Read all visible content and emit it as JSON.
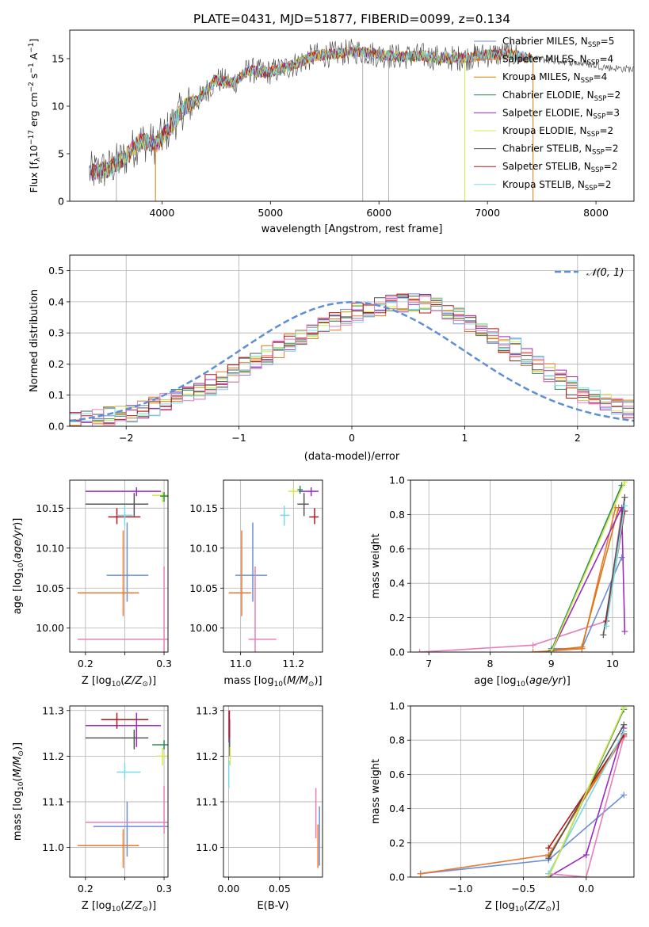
{
  "figure_title": "PLATE=0431, MJD=51877, FIBERID=0099, z=0.134",
  "colors": {
    "Chabrier MILES": "#6a8fd8",
    "Salpeter MILES": "#ee7733",
    "Kroupa MILES": "#d47a12",
    "Chabrier ELODIE": "#2e8b57",
    "Salpeter ELODIE": "#9a2ac2",
    "Kroupa ELODIE": "#d6e84a",
    "Chabrier STELIB": "#555555",
    "Salpeter STELIB": "#b01818",
    "Kroupa STELIB": "#76d9e6",
    "Pink": "#e67fb9",
    "normal": "#5f8ed8"
  },
  "chart_data": [
    {
      "id": "spectrum",
      "type": "line",
      "xlabel": "wavelength [Angstrom, rest frame]",
      "ylabel": "Flux [f_λ10^-17 erg cm^-2 s^-1 A^-1]",
      "ylabel_parts": {
        "main": "Flux [f",
        "sub1": "λ",
        "mid": "10",
        "sup1": "−17",
        "mid2": " erg cm",
        "sup2": "−2",
        "mid3": " s",
        "sup3": "−1",
        "mid4": " A",
        "sup4": "−1",
        "end": "]"
      },
      "xlim": [
        3150,
        8350
      ],
      "ylim": [
        0,
        18
      ],
      "xticks": [
        4000,
        5000,
        6000,
        7000,
        8000
      ],
      "yticks": [
        0,
        5,
        10,
        15
      ],
      "grid": false,
      "legend": [
        {
          "text": "Chabrier MILES, N",
          "sub": "SSP",
          "val": "=5",
          "color": "#6a8fd8"
        },
        {
          "text": "Salpeter MILES, N",
          "sub": "SSP",
          "val": "=4",
          "color": "#ee7733"
        },
        {
          "text": "Kroupa MILES, N",
          "sub": "SSP",
          "val": "=4",
          "color": "#d47a12"
        },
        {
          "text": "Chabrier ELODIE, N",
          "sub": "SSP",
          "val": "=2",
          "color": "#2e8b57"
        },
        {
          "text": "Salpeter ELODIE, N",
          "sub": "SSP",
          "val": "=3",
          "color": "#9a2ac2"
        },
        {
          "text": "Kroupa ELODIE, N",
          "sub": "SSP",
          "val": "=2",
          "color": "#d6e84a"
        },
        {
          "text": "Chabrier STELIB, N",
          "sub": "SSP",
          "val": "=2",
          "color": "#555555"
        },
        {
          "text": "Salpeter STELIB, N",
          "sub": "SSP",
          "val": "=2",
          "color": "#b01818"
        },
        {
          "text": "Kroupa STELIB, N",
          "sub": "SSP",
          "val": "=2",
          "color": "#76d9e6"
        }
      ],
      "envelope": {
        "x": [
          3330,
          3500,
          3650,
          3800,
          3950,
          4050,
          4200,
          4350,
          4500,
          4650,
          4800,
          4950,
          5100,
          5250,
          5400,
          5600,
          5800,
          6000,
          6200,
          6400,
          6600,
          6800,
          7000,
          7200,
          7400,
          7600,
          7800,
          8000,
          8150,
          8350
        ],
        "y": [
          3.0,
          3.4,
          4.5,
          6.4,
          6.0,
          7.4,
          9.8,
          10.8,
          12.8,
          12.4,
          13.8,
          13.5,
          13.9,
          14.5,
          15.3,
          15.5,
          15.8,
          15.4,
          15.2,
          15.3,
          15.0,
          15.1,
          15.4,
          15.5,
          15.0,
          14.8,
          14.6,
          14.3,
          14.0,
          13.9
        ]
      },
      "dropouts": [
        3580,
        3940,
        5850,
        6090,
        6790,
        7420
      ]
    },
    {
      "id": "residuals",
      "type": "line",
      "xlabel": "(data-model)/error",
      "ylabel": "Normed distribution",
      "xlim": [
        -2.5,
        2.5
      ],
      "ylim": [
        0,
        0.55
      ],
      "xticks": [
        -2,
        -1,
        0,
        1,
        2
      ],
      "yticks": [
        0.0,
        0.1,
        0.2,
        0.3,
        0.4,
        0.5
      ],
      "grid": true,
      "legend": [
        {
          "text": "𝒩(0, 1)",
          "color": "#5f8ed8",
          "style": "dashed"
        }
      ],
      "bin_width": 0.1,
      "profile": {
        "x": [
          -2.5,
          -2.2,
          -2.0,
          -1.8,
          -1.6,
          -1.4,
          -1.2,
          -1.0,
          -0.8,
          -0.6,
          -0.4,
          -0.2,
          0.0,
          0.2,
          0.4,
          0.6,
          0.8,
          1.0,
          1.2,
          1.4,
          1.6,
          1.8,
          2.0,
          2.2,
          2.4,
          2.5
        ],
        "y": [
          0.015,
          0.03,
          0.04,
          0.06,
          0.085,
          0.11,
          0.14,
          0.18,
          0.22,
          0.26,
          0.3,
          0.33,
          0.36,
          0.38,
          0.395,
          0.4,
          0.38,
          0.34,
          0.3,
          0.26,
          0.2,
          0.16,
          0.11,
          0.08,
          0.06,
          0.055
        ]
      }
    },
    {
      "id": "age_vs_Z",
      "type": "scatter",
      "xlabel": "Z [log10(Z/Z⊙)]",
      "ylabel": "age  [log10(age/yr)]",
      "xlim": [
        0.18,
        0.305
      ],
      "ylim": [
        9.97,
        10.185
      ],
      "xticks": [
        0.2,
        0.25,
        0.3
      ],
      "xticklabels": [
        "0.2",
        "",
        "0.3"
      ],
      "yticks": [
        10.0,
        10.05,
        10.1,
        10.15
      ],
      "grid": true,
      "points": [
        {
          "x": 0.253,
          "xerr": [
            0.28,
            0.227
          ],
          "y": 10.066,
          "yerr": [
            10.033,
            10.132
          ],
          "c": "#6a8fd8"
        },
        {
          "x": 0.248,
          "xerr": [
            0.268,
            0.19
          ],
          "y": 10.044,
          "yerr": [
            10.015,
            10.122
          ],
          "c": "#ee7733"
        },
        {
          "x": 0.3,
          "xerr": [
            0.305,
            0.19
          ],
          "y": 9.986,
          "yerr": [
            9.97,
            10.077
          ],
          "c": "#e67fb9"
        },
        {
          "x": 0.265,
          "xerr": [
            0.296,
            0.2
          ],
          "y": 10.171,
          "yerr": [
            10.165,
            10.176
          ],
          "c": "#9a2ac2"
        },
        {
          "x": 0.262,
          "xerr": [
            0.28,
            0.2
          ],
          "y": 10.155,
          "yerr": [
            10.14,
            10.169
          ],
          "c": "#555555"
        },
        {
          "x": 0.24,
          "xerr": [
            0.27,
            0.229
          ],
          "y": 10.139,
          "yerr": [
            10.13,
            10.15
          ],
          "c": "#b01818"
        },
        {
          "x": 0.25,
          "xerr": [
            0.26,
            0.24
          ],
          "y": 10.141,
          "yerr": [
            10.128,
            10.153
          ],
          "c": "#76d9e6"
        },
        {
          "x": 0.298,
          "xerr": [
            0.305,
            0.285
          ],
          "y": 10.166,
          "yerr": [
            10.157,
            10.171
          ],
          "c": "#d6e84a"
        },
        {
          "x": 0.3,
          "xerr": [
            0.305,
            0.295
          ],
          "y": 10.165,
          "yerr": [
            10.158,
            10.17
          ],
          "c": "#2e8b57"
        }
      ]
    },
    {
      "id": "age_vs_mass",
      "type": "scatter",
      "xlabel": "mass [log10(M/M⊙)]",
      "ylabel": "",
      "xlim": [
        10.935,
        11.31
      ],
      "ylim": [
        9.97,
        10.185
      ],
      "xticks": [
        11.0,
        11.2
      ],
      "xticklabels": [
        "11.0",
        "11.2"
      ],
      "yticks": [
        10.0,
        10.05,
        10.1,
        10.15
      ],
      "grid": true,
      "points": [
        {
          "x": 11.046,
          "xerr": [
            10.98,
            11.1
          ],
          "y": 10.066,
          "yerr": [
            10.033,
            10.132
          ],
          "c": "#6a8fd8"
        },
        {
          "x": 11.004,
          "xerr": [
            10.955,
            11.04
          ],
          "y": 10.044,
          "yerr": [
            10.015,
            10.122
          ],
          "c": "#ee7733"
        },
        {
          "x": 11.055,
          "xerr": [
            11.03,
            11.135
          ],
          "y": 9.986,
          "yerr": [
            9.97,
            10.077
          ],
          "c": "#e67fb9"
        },
        {
          "x": 11.267,
          "xerr": [
            11.22,
            11.295
          ],
          "y": 10.171,
          "yerr": [
            10.165,
            10.176
          ],
          "c": "#9a2ac2"
        },
        {
          "x": 11.24,
          "xerr": [
            11.215,
            11.258
          ],
          "y": 10.155,
          "yerr": [
            10.14,
            10.169
          ],
          "c": "#555555"
        },
        {
          "x": 11.28,
          "xerr": [
            11.26,
            11.295
          ],
          "y": 10.139,
          "yerr": [
            10.13,
            10.15
          ],
          "c": "#b01818"
        },
        {
          "x": 11.165,
          "xerr": [
            11.15,
            11.185
          ],
          "y": 10.141,
          "yerr": [
            10.128,
            10.153
          ],
          "c": "#76d9e6"
        },
        {
          "x": 11.2,
          "xerr": [
            11.18,
            11.218
          ],
          "y": 10.171,
          "yerr": [
            10.165,
            10.176
          ],
          "c": "#d6e84a"
        },
        {
          "x": 11.225,
          "xerr": [
            11.215,
            11.235
          ],
          "y": 10.173,
          "yerr": [
            10.168,
            10.178
          ],
          "c": "#2e8b57"
        }
      ]
    },
    {
      "id": "massweight_vs_age",
      "type": "line",
      "xlabel": "age  [log10(age/yr)]",
      "ylabel": "mass weight",
      "xlim": [
        6.7,
        10.35
      ],
      "ylim": [
        0,
        1.0
      ],
      "xticks": [
        7,
        8,
        9,
        10
      ],
      "yticks": [
        0.0,
        0.2,
        0.4,
        0.6,
        0.8,
        1.0
      ],
      "grid": true,
      "series": [
        {
          "c": "#e67fb9",
          "x": [
            6.85,
            8.7,
            9.9,
            10.15
          ],
          "y": [
            0.0,
            0.04,
            0.18,
            0.82
          ]
        },
        {
          "c": "#6a8fd8",
          "x": [
            9.0,
            9.5,
            10.15
          ],
          "y": [
            0.02,
            0.02,
            0.55
          ]
        },
        {
          "c": "#ee7733",
          "x": [
            8.7,
            9.5,
            10.05
          ],
          "y": [
            0.0,
            0.02,
            0.84
          ]
        },
        {
          "c": "#d47a12",
          "x": [
            9.0,
            9.5,
            10.1
          ],
          "y": [
            0.01,
            0.03,
            0.84
          ]
        },
        {
          "c": "#9a2ac2",
          "x": [
            9.0,
            10.15,
            10.2
          ],
          "y": [
            0.0,
            0.84,
            0.12
          ]
        },
        {
          "c": "#555555",
          "x": [
            9.85,
            10.2
          ],
          "y": [
            0.1,
            0.9
          ]
        },
        {
          "c": "#b01818",
          "x": [
            9.9,
            10.2
          ],
          "y": [
            0.18,
            0.82
          ]
        },
        {
          "c": "#76d9e6",
          "x": [
            9.9,
            10.2
          ],
          "y": [
            0.15,
            0.85
          ]
        },
        {
          "c": "#2e8b57",
          "x": [
            9.0,
            10.15
          ],
          "y": [
            0.01,
            0.97
          ]
        },
        {
          "c": "#d6e84a",
          "x": [
            9.0,
            10.2
          ],
          "y": [
            0.0,
            0.99
          ]
        }
      ]
    },
    {
      "id": "mass_vs_Z",
      "type": "scatter",
      "xlabel": "Z [log10(Z/Z⊙)]",
      "ylabel": "mass [log10(M/M⊙)]",
      "xlim": [
        0.18,
        0.305
      ],
      "ylim": [
        10.935,
        11.31
      ],
      "xticks": [
        0.2,
        0.25,
        0.3
      ],
      "xticklabels": [
        "0.2",
        "",
        "0.3"
      ],
      "yticks": [
        11.0,
        11.1,
        11.2,
        11.3
      ],
      "grid": true,
      "points": [
        {
          "x": 0.253,
          "xerr": [
            0.21,
            0.305
          ],
          "y": 11.046,
          "yerr": [
            10.98,
            11.1
          ],
          "c": "#6a8fd8"
        },
        {
          "x": 0.248,
          "xerr": [
            0.19,
            0.268
          ],
          "y": 11.004,
          "yerr": [
            10.955,
            11.04
          ],
          "c": "#ee7733"
        },
        {
          "x": 0.3,
          "xerr": [
            0.2,
            0.305
          ],
          "y": 11.055,
          "yerr": [
            11.03,
            11.135
          ],
          "c": "#e67fb9"
        },
        {
          "x": 0.265,
          "xerr": [
            0.2,
            0.296
          ],
          "y": 11.267,
          "yerr": [
            11.22,
            11.295
          ],
          "c": "#9a2ac2"
        },
        {
          "x": 0.262,
          "xerr": [
            0.2,
            0.28
          ],
          "y": 11.24,
          "yerr": [
            11.215,
            11.258
          ],
          "c": "#555555"
        },
        {
          "x": 0.24,
          "xerr": [
            0.22,
            0.28
          ],
          "y": 11.28,
          "yerr": [
            11.26,
            11.295
          ],
          "c": "#b01818"
        },
        {
          "x": 0.25,
          "xerr": [
            0.24,
            0.27
          ],
          "y": 11.165,
          "yerr": [
            11.15,
            11.185
          ],
          "c": "#76d9e6"
        },
        {
          "x": 0.298,
          "xerr": [
            0.29,
            0.305
          ],
          "y": 11.2,
          "yerr": [
            11.18,
            11.218
          ],
          "c": "#d6e84a"
        },
        {
          "x": 0.3,
          "xerr": [
            0.285,
            0.305
          ],
          "y": 11.225,
          "yerr": [
            11.215,
            11.235
          ],
          "c": "#2e8b57"
        }
      ]
    },
    {
      "id": "mass_vs_ebv",
      "type": "scatter",
      "xlabel": "E(B-V)",
      "ylabel": "",
      "xlim": [
        -0.005,
        0.092
      ],
      "ylim": [
        10.935,
        11.31
      ],
      "xticks": [
        0.0,
        0.05
      ],
      "xticklabels": [
        "0.00",
        "0.05"
      ],
      "yticks": [
        11.0,
        11.1,
        11.2,
        11.3
      ],
      "grid": true,
      "points": [
        {
          "x": 0.089,
          "xerr": [
            0.089,
            0.089
          ],
          "y": 11.03,
          "yerr": [
            10.96,
            11.09
          ],
          "c": "#6a8fd8"
        },
        {
          "x": 0.0875,
          "xerr": [
            0.0875,
            0.0875
          ],
          "y": 11.0,
          "yerr": [
            10.955,
            11.05
          ],
          "c": "#ee7733"
        },
        {
          "x": 0.0855,
          "xerr": [
            0.0855,
            0.0855
          ],
          "y": 11.07,
          "yerr": [
            11.02,
            11.13
          ],
          "c": "#e67fb9"
        },
        {
          "x": 0.0005,
          "xerr": [
            0.0005,
            0.0005
          ],
          "y": 11.27,
          "yerr": [
            11.23,
            11.3
          ],
          "c": "#9a2ac2"
        },
        {
          "x": 0.001,
          "xerr": [
            0.001,
            0.001
          ],
          "y": 11.24,
          "yerr": [
            11.2,
            11.28
          ],
          "c": "#555555"
        },
        {
          "x": 0.0008,
          "xerr": [
            0.0008,
            0.0008
          ],
          "y": 11.27,
          "yerr": [
            11.24,
            11.3
          ],
          "c": "#b01818"
        },
        {
          "x": 0.0002,
          "xerr": [
            0.0002,
            0.0002
          ],
          "y": 11.165,
          "yerr": [
            11.13,
            11.19
          ],
          "c": "#76d9e6"
        },
        {
          "x": 0.0015,
          "xerr": [
            0.0015,
            0.0015
          ],
          "y": 11.2,
          "yerr": [
            11.18,
            11.22
          ],
          "c": "#d6e84a"
        }
      ]
    },
    {
      "id": "massweight_vs_Z",
      "type": "line",
      "xlabel": "Z [log10(Z/Z⊙)]",
      "ylabel": "mass weight",
      "xlim": [
        -1.4,
        0.38
      ],
      "ylim": [
        0,
        1.0
      ],
      "xticks": [
        -1.0,
        -0.5,
        0.0
      ],
      "xticklabels": [
        "−1.0",
        "−0.5",
        "0.0"
      ],
      "yticks": [
        0.0,
        0.2,
        0.4,
        0.6,
        0.8,
        1.0
      ],
      "grid": true,
      "series": [
        {
          "c": "#6a8fd8",
          "x": [
            -1.32,
            -0.3,
            0.3
          ],
          "y": [
            0.02,
            0.1,
            0.48
          ]
        },
        {
          "c": "#ee7733",
          "x": [
            -1.32,
            -0.3,
            0.3
          ],
          "y": [
            0.02,
            0.13,
            0.82
          ]
        },
        {
          "c": "#d47a12",
          "x": [
            -0.3,
            0.3
          ],
          "y": [
            0.12,
            0.84
          ]
        },
        {
          "c": "#9a2ac2",
          "x": [
            -0.3,
            0.0,
            0.3
          ],
          "y": [
            0.0,
            0.13,
            0.87
          ]
        },
        {
          "c": "#e67fb9",
          "x": [
            -0.3,
            0.0,
            0.3
          ],
          "y": [
            0.02,
            0.0,
            0.82
          ]
        },
        {
          "c": "#555555",
          "x": [
            -0.3,
            0.3
          ],
          "y": [
            0.11,
            0.89
          ]
        },
        {
          "c": "#b01818",
          "x": [
            -0.3,
            0.3
          ],
          "y": [
            0.17,
            0.83
          ]
        },
        {
          "c": "#76d9e6",
          "x": [
            -0.3,
            0.3
          ],
          "y": [
            0.02,
            0.85
          ]
        },
        {
          "c": "#2e8b57",
          "x": [
            -0.3,
            0.3
          ],
          "y": [
            0.0,
            0.98
          ]
        },
        {
          "c": "#d6e84a",
          "x": [
            -0.3,
            0.3
          ],
          "y": [
            0.0,
            0.99
          ]
        }
      ]
    }
  ]
}
